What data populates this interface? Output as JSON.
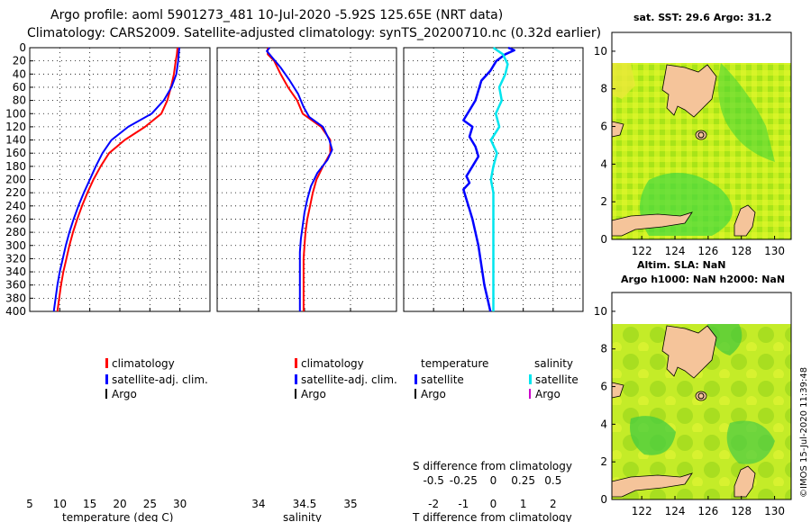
{
  "title_line1": "Argo profile: aoml 5901273_481 10-Jul-2020 -5.92S 125.65E (NRT data)",
  "title_line2": "Climatology: CARS2009. Satellite-adjusted climatology: synTS_20200710.nc (0.32d earlier)",
  "footer_stamp": "©IMOS 15-Jul-2020 11:39:48",
  "colors": {
    "climatology": "#ff0000",
    "satellite": "#0000ff",
    "argo": "#000000",
    "sat_salinity": "#00e5ee",
    "argo_salinity": "#cc00cc"
  },
  "chart_data": [
    {
      "id": "temperature",
      "type": "line",
      "xlabel": "temperature (deg C)",
      "ylabel": "",
      "xlim": [
        5,
        35
      ],
      "ylim": [
        400,
        0
      ],
      "xticks": [
        5,
        10,
        15,
        20,
        25,
        30
      ],
      "xtick_labels": [
        "5",
        "10",
        "15",
        "20",
        "25",
        "30"
      ],
      "yticks": [
        0,
        20,
        40,
        60,
        80,
        100,
        120,
        140,
        160,
        180,
        200,
        220,
        240,
        260,
        280,
        300,
        320,
        340,
        360,
        380,
        400
      ],
      "ytick_labels": [
        "0",
        "20",
        "40",
        "60",
        "80",
        "100",
        "120",
        "140",
        "160",
        "180",
        "200",
        "220",
        "240",
        "260",
        "280",
        "300",
        "320",
        "340",
        "360",
        "380",
        "400"
      ],
      "legend": [
        {
          "label": "climatology",
          "color": "#ff0000"
        },
        {
          "label": "satellite-adj. clim.",
          "color": "#0000ff"
        },
        {
          "label": "Argo",
          "color": "#000000"
        }
      ],
      "series": [
        {
          "name": "climatology",
          "color": "#ff0000",
          "points": [
            [
              29.6,
              0
            ],
            [
              29.5,
              10
            ],
            [
              29.3,
              20
            ],
            [
              29.0,
              40
            ],
            [
              28.5,
              60
            ],
            [
              27.9,
              80
            ],
            [
              26.9,
              100
            ],
            [
              24.2,
              120
            ],
            [
              20.8,
              140
            ],
            [
              18.2,
              160
            ],
            [
              16.8,
              180
            ],
            [
              15.6,
              200
            ],
            [
              14.6,
              220
            ],
            [
              13.7,
              240
            ],
            [
              12.9,
              260
            ],
            [
              12.2,
              280
            ],
            [
              11.6,
              300
            ],
            [
              11.1,
              320
            ],
            [
              10.6,
              340
            ],
            [
              10.2,
              360
            ],
            [
              9.9,
              380
            ],
            [
              9.6,
              400
            ]
          ]
        },
        {
          "name": "satellite-adj. clim.",
          "color": "#0000ff",
          "points": [
            [
              29.9,
              0
            ],
            [
              29.8,
              10
            ],
            [
              29.7,
              20
            ],
            [
              29.4,
              40
            ],
            [
              28.6,
              60
            ],
            [
              27.3,
              80
            ],
            [
              25.3,
              100
            ],
            [
              21.4,
              120
            ],
            [
              18.6,
              140
            ],
            [
              17.1,
              160
            ],
            [
              16.0,
              180
            ],
            [
              15.0,
              200
            ],
            [
              14.0,
              220
            ],
            [
              13.1,
              240
            ],
            [
              12.3,
              260
            ],
            [
              11.6,
              280
            ],
            [
              11.0,
              300
            ],
            [
              10.5,
              320
            ],
            [
              10.0,
              340
            ],
            [
              9.6,
              360
            ],
            [
              9.3,
              380
            ],
            [
              9.0,
              400
            ]
          ]
        }
      ]
    },
    {
      "id": "salinity",
      "type": "line",
      "xlabel": "salinity",
      "xlim": [
        33.55,
        35.5
      ],
      "ylim": [
        400,
        0
      ],
      "xticks": [
        34,
        34.5,
        35
      ],
      "xtick_labels": [
        "34",
        "34.5",
        "35"
      ],
      "legend": [
        {
          "label": "climatology",
          "color": "#ff0000"
        },
        {
          "label": "satellite-adj. clim.",
          "color": "#0000ff"
        },
        {
          "label": "Argo",
          "color": "#000000"
        }
      ],
      "series": [
        {
          "name": "climatology",
          "color": "#ff0000",
          "points": [
            [
              34.1,
              0
            ],
            [
              34.1,
              10
            ],
            [
              34.17,
              20
            ],
            [
              34.24,
              40
            ],
            [
              34.32,
              60
            ],
            [
              34.42,
              80
            ],
            [
              34.48,
              100
            ],
            [
              34.68,
              120
            ],
            [
              34.78,
              140
            ],
            [
              34.78,
              160
            ],
            [
              34.7,
              180
            ],
            [
              34.63,
              200
            ],
            [
              34.59,
              220
            ],
            [
              34.56,
              240
            ],
            [
              34.53,
              260
            ],
            [
              34.51,
              280
            ],
            [
              34.5,
              300
            ],
            [
              34.49,
              320
            ],
            [
              34.49,
              340
            ],
            [
              34.49,
              360
            ],
            [
              34.49,
              380
            ],
            [
              34.49,
              400
            ]
          ]
        },
        {
          "name": "satellite-adj. clim.",
          "color": "#0000ff",
          "points": [
            [
              34.12,
              0
            ],
            [
              34.09,
              5
            ],
            [
              34.15,
              15
            ],
            [
              34.24,
              30
            ],
            [
              34.34,
              50
            ],
            [
              34.43,
              70
            ],
            [
              34.49,
              90
            ],
            [
              34.55,
              105
            ],
            [
              34.7,
              120
            ],
            [
              34.77,
              140
            ],
            [
              34.8,
              155
            ],
            [
              34.75,
              170
            ],
            [
              34.64,
              190
            ],
            [
              34.57,
              210
            ],
            [
              34.53,
              230
            ],
            [
              34.5,
              250
            ],
            [
              34.48,
              270
            ],
            [
              34.46,
              290
            ],
            [
              34.45,
              310
            ],
            [
              34.45,
              340
            ],
            [
              34.45,
              370
            ],
            [
              34.45,
              400
            ]
          ]
        }
      ]
    },
    {
      "id": "difference",
      "type": "line",
      "xlabel": "T difference from climatology",
      "xlim": [
        -3,
        3
      ],
      "ylim": [
        400,
        0
      ],
      "xticks": [
        -2,
        -1,
        0,
        1,
        2
      ],
      "xtick_labels": [
        "-2",
        "-1",
        "0",
        "1",
        "2"
      ],
      "secondary_axis": {
        "label": "S difference from climatology",
        "ticks": [
          -0.5,
          -0.25,
          0,
          0.25,
          0.5
        ],
        "tick_labels": [
          "-0.5",
          "-0.25",
          "0",
          "0.25",
          "0.5"
        ]
      },
      "legend_temperature": {
        "title": "temperature",
        "items": [
          {
            "label": "satellite",
            "color": "#0000ff"
          },
          {
            "label": "Argo",
            "color": "#000000"
          }
        ]
      },
      "legend_salinity": {
        "title": "salinity",
        "items": [
          {
            "label": "satellite",
            "color": "#00e5ee"
          },
          {
            "label": "Argo",
            "color": "#cc00cc"
          }
        ]
      },
      "series": [
        {
          "name": "temperature satellite",
          "color": "#0000ff",
          "points": [
            [
              0.5,
              0
            ],
            [
              0.7,
              4
            ],
            [
              0.4,
              10
            ],
            [
              0.1,
              20
            ],
            [
              -0.1,
              35
            ],
            [
              -0.4,
              50
            ],
            [
              -0.5,
              65
            ],
            [
              -0.6,
              80
            ],
            [
              -0.8,
              95
            ],
            [
              -1.0,
              110
            ],
            [
              -0.7,
              120
            ],
            [
              -0.8,
              135
            ],
            [
              -0.6,
              150
            ],
            [
              -0.5,
              165
            ],
            [
              -0.7,
              180
            ],
            [
              -0.9,
              195
            ],
            [
              -0.8,
              205
            ],
            [
              -1.0,
              215
            ],
            [
              -0.9,
              230
            ],
            [
              -0.8,
              245
            ],
            [
              -0.7,
              260
            ],
            [
              -0.6,
              280
            ],
            [
              -0.5,
              300
            ],
            [
              -0.4,
              330
            ],
            [
              -0.3,
              360
            ],
            [
              -0.2,
              380
            ],
            [
              -0.1,
              400
            ]
          ]
        },
        {
          "name": "salinity satellite",
          "color": "#00e5ee",
          "axis": "S",
          "points": [
            [
              0,
              0
            ],
            [
              0.08,
              10
            ],
            [
              0.12,
              25
            ],
            [
              0.1,
              40
            ],
            [
              0.05,
              60
            ],
            [
              0.07,
              80
            ],
            [
              0.02,
              100
            ],
            [
              0.05,
              120
            ],
            [
              -0.02,
              140
            ],
            [
              0.03,
              160
            ],
            [
              0.0,
              180
            ],
            [
              -0.02,
              200
            ],
            [
              0.0,
              220
            ],
            [
              0.0,
              260
            ],
            [
              0.0,
              300
            ],
            [
              0.0,
              350
            ],
            [
              0.0,
              400
            ]
          ]
        }
      ]
    },
    {
      "id": "sst_map",
      "type": "heatmap",
      "title": "sat. SST: 29.6 Argo: 31.2",
      "xlim": [
        120.2,
        131
      ],
      "ylim": [
        0,
        11
      ],
      "xticks": [
        122,
        124,
        126,
        128,
        130
      ],
      "xtick_labels": [
        "122",
        "124",
        "126",
        "128",
        "130"
      ],
      "yticks": [
        0,
        2,
        4,
        6,
        8,
        10
      ],
      "ytick_labels": [
        "0",
        "2",
        "4",
        "6",
        "8",
        "10"
      ],
      "argo_position": [
        125.65,
        5.92
      ]
    },
    {
      "id": "sla_map",
      "type": "heatmap",
      "title_line1": "Altim. SLA: NaN",
      "title_line2": "Argo h1000: NaN h2000: NaN",
      "xlim": [
        120.2,
        131
      ],
      "ylim": [
        0,
        11
      ],
      "xticks": [
        122,
        124,
        126,
        128,
        130
      ],
      "xtick_labels": [
        "122",
        "124",
        "126",
        "128",
        "130"
      ],
      "yticks": [
        0,
        2,
        4,
        6,
        8,
        10
      ],
      "ytick_labels": [
        "0",
        "2",
        "4",
        "6",
        "8",
        "10"
      ],
      "argo_position": [
        125.65,
        5.92
      ]
    }
  ]
}
